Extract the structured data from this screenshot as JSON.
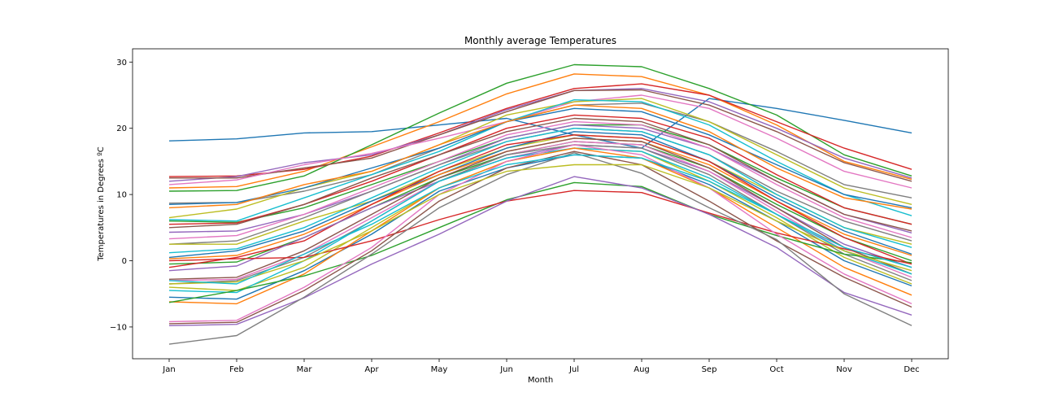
{
  "chart_data": {
    "type": "line",
    "title": "Monthly average Temperatures",
    "xlabel": "Month",
    "ylabel": "Temperatures in Degrees ºC",
    "categories": [
      "Jan",
      "Feb",
      "Mar",
      "Apr",
      "May",
      "Jun",
      "Jul",
      "Aug",
      "Sep",
      "Oct",
      "Nov",
      "Dec"
    ],
    "ylim": [
      -14.8,
      32.0
    ],
    "yticks": [
      -10,
      0,
      10,
      20,
      30
    ],
    "grid": false,
    "legend": "none",
    "palette": [
      "#1f77b4",
      "#ff7f0e",
      "#2ca02c",
      "#d62728",
      "#9467bd",
      "#8c564b",
      "#e377c2",
      "#7f7f7f",
      "#bcbd22",
      "#17becf"
    ],
    "series": [
      {
        "values": [
          18.1,
          18.4,
          19.3,
          19.5,
          20.5,
          21.5,
          19.0,
          17.0,
          24.5,
          23.0,
          21.2,
          19.3
        ]
      },
      {
        "values": [
          11.0,
          11.2,
          13.5,
          17.2,
          21.0,
          25.2,
          28.2,
          27.8,
          25.0,
          20.5,
          15.0,
          12.3
        ]
      },
      {
        "values": [
          10.5,
          10.6,
          12.8,
          17.5,
          22.3,
          26.8,
          29.6,
          29.3,
          26.0,
          22.0,
          16.0,
          12.8
        ]
      },
      {
        "values": [
          12.7,
          12.8,
          13.8,
          15.8,
          19.3,
          23.0,
          26.0,
          26.7,
          25.0,
          21.0,
          17.0,
          13.8
        ]
      },
      {
        "values": [
          12.0,
          12.7,
          14.8,
          16.0,
          19.0,
          22.8,
          25.7,
          26.0,
          24.0,
          20.0,
          15.5,
          12.5
        ]
      },
      {
        "values": [
          12.5,
          12.5,
          14.0,
          15.5,
          19.0,
          22.5,
          25.7,
          25.8,
          23.5,
          19.5,
          14.8,
          12.0
        ]
      },
      {
        "values": [
          11.5,
          12.2,
          14.5,
          16.2,
          18.5,
          21.0,
          24.0,
          25.0,
          23.0,
          18.5,
          13.5,
          11.0
        ]
      },
      {
        "values": [
          8.7,
          8.8,
          10.5,
          13.0,
          17.0,
          21.0,
          23.5,
          23.8,
          21.0,
          16.5,
          11.5,
          9.5
        ]
      },
      {
        "values": [
          6.5,
          7.8,
          11.0,
          13.5,
          17.5,
          22.0,
          24.0,
          24.5,
          21.0,
          16.0,
          11.0,
          8.5
        ]
      },
      {
        "values": [
          6.2,
          6.0,
          9.5,
          13.0,
          16.5,
          21.0,
          24.3,
          24.0,
          20.5,
          15.0,
          10.0,
          6.8
        ]
      },
      {
        "values": [
          8.5,
          8.8,
          11.0,
          14.0,
          17.0,
          21.0,
          23.0,
          22.5,
          19.0,
          14.5,
          10.0,
          8.0
        ]
      },
      {
        "values": [
          8.0,
          8.5,
          11.5,
          13.5,
          17.5,
          21.0,
          23.5,
          23.0,
          19.5,
          14.0,
          9.5,
          7.8
        ]
      },
      {
        "values": [
          6.0,
          5.8,
          8.0,
          11.5,
          15.0,
          18.5,
          20.5,
          20.5,
          17.5,
          12.5,
          8.0,
          5.5
        ]
      },
      {
        "values": [
          5.5,
          5.7,
          8.5,
          12.0,
          16.0,
          20.0,
          22.0,
          21.5,
          18.5,
          13.0,
          8.0,
          5.5
        ]
      },
      {
        "values": [
          4.3,
          4.5,
          7.0,
          10.5,
          14.5,
          18.5,
          20.5,
          20.0,
          17.0,
          12.0,
          7.0,
          4.2
        ]
      },
      {
        "values": [
          5.0,
          5.5,
          8.5,
          12.5,
          16.0,
          19.5,
          21.5,
          21.0,
          17.5,
          12.0,
          7.0,
          4.5
        ]
      },
      {
        "values": [
          3.3,
          3.8,
          7.0,
          11.0,
          15.0,
          19.0,
          21.0,
          20.5,
          17.0,
          11.5,
          6.5,
          3.5
        ]
      },
      {
        "values": [
          2.5,
          3.0,
          6.5,
          10.5,
          14.5,
          18.0,
          20.0,
          19.5,
          16.0,
          10.5,
          6.0,
          3.0
        ]
      },
      {
        "values": [
          2.5,
          2.5,
          6.0,
          9.0,
          13.5,
          17.0,
          19.0,
          18.5,
          15.0,
          10.0,
          5.0,
          2.5
        ]
      },
      {
        "values": [
          1.2,
          1.8,
          5.0,
          9.5,
          14.0,
          18.0,
          20.0,
          19.5,
          16.0,
          10.0,
          5.0,
          2.0
        ]
      },
      {
        "values": [
          0.5,
          1.5,
          4.5,
          9.0,
          13.0,
          17.0,
          19.5,
          19.0,
          15.0,
          9.5,
          4.5,
          1.0
        ]
      },
      {
        "values": [
          0.3,
          0.8,
          4.0,
          8.5,
          13.0,
          16.5,
          18.5,
          18.0,
          14.5,
          9.0,
          4.0,
          0.8
        ]
      },
      {
        "values": [
          -0.5,
          -0.2,
          3.5,
          8.0,
          12.5,
          16.0,
          18.0,
          17.5,
          14.0,
          8.5,
          3.5,
          0.0
        ]
      },
      {
        "values": [
          -1.0,
          0.5,
          3.0,
          8.5,
          13.5,
          17.5,
          19.0,
          18.5,
          15.0,
          9.0,
          3.5,
          -0.5
        ]
      },
      {
        "values": [
          -1.5,
          -0.8,
          3.5,
          8.0,
          12.0,
          15.5,
          17.5,
          17.0,
          13.5,
          8.0,
          2.5,
          -1.0
        ]
      },
      {
        "values": [
          -2.8,
          -2.5,
          1.5,
          7.0,
          12.5,
          16.5,
          18.5,
          18.0,
          14.0,
          8.0,
          2.0,
          -2.0
        ]
      },
      {
        "values": [
          -3.0,
          -2.8,
          1.0,
          6.5,
          12.0,
          16.0,
          18.0,
          17.5,
          13.5,
          7.5,
          1.5,
          -2.5
        ]
      },
      {
        "values": [
          -3.5,
          -3.0,
          0.5,
          6.0,
          12.0,
          16.0,
          17.5,
          17.0,
          13.0,
          7.0,
          1.0,
          -3.0
        ]
      },
      {
        "values": [
          -4.0,
          -4.5,
          -1.0,
          5.0,
          11.0,
          15.0,
          17.0,
          16.5,
          12.0,
          6.5,
          0.5,
          -3.5
        ]
      },
      {
        "values": [
          -4.5,
          -4.8,
          0.0,
          6.0,
          12.0,
          15.5,
          17.0,
          16.5,
          12.5,
          7.0,
          1.5,
          -2.0
        ]
      },
      {
        "values": [
          -5.5,
          -5.8,
          -1.5,
          4.0,
          10.5,
          14.0,
          16.0,
          15.5,
          11.5,
          6.0,
          0.0,
          -3.8
        ]
      },
      {
        "values": [
          -6.2,
          -6.5,
          -2.0,
          4.5,
          11.0,
          15.0,
          17.0,
          15.5,
          11.0,
          5.0,
          -1.0,
          -5.2
        ]
      },
      {
        "values": [
          -6.3,
          -4.5,
          -2.3,
          0.8,
          5.0,
          9.2,
          11.8,
          11.2,
          7.0,
          3.8,
          1.0,
          -0.3
        ]
      },
      {
        "values": [
          0.0,
          0.3,
          0.5,
          3.0,
          6.2,
          9.0,
          10.6,
          10.3,
          7.2,
          4.2,
          1.8,
          -0.5
        ]
      },
      {
        "values": [
          -9.8,
          -9.6,
          -5.6,
          -0.5,
          4.0,
          9.0,
          12.7,
          11.0,
          7.0,
          2.0,
          -4.8,
          -8.2
        ]
      },
      {
        "values": [
          -9.5,
          -9.3,
          -4.5,
          1.5,
          9.0,
          14.0,
          16.5,
          14.5,
          9.0,
          3.0,
          -2.5,
          -7.0
        ]
      },
      {
        "values": [
          -9.2,
          -9.0,
          -4.0,
          2.0,
          10.0,
          15.0,
          17.5,
          16.0,
          11.0,
          4.0,
          -2.0,
          -6.5
        ]
      },
      {
        "values": [
          -12.6,
          -11.3,
          -5.5,
          1.0,
          8.0,
          13.0,
          16.3,
          13.2,
          8.0,
          3.2,
          -5.0,
          -9.8
        ]
      },
      {
        "values": [
          -3.5,
          -3.2,
          0.0,
          4.5,
          10.0,
          13.5,
          14.5,
          14.5,
          11.0,
          6.0,
          1.5,
          -1.5
        ]
      },
      {
        "values": [
          -3.0,
          -3.5,
          1.0,
          5.5,
          11.0,
          14.5,
          16.0,
          15.5,
          12.0,
          7.0,
          2.0,
          -1.0
        ]
      }
    ]
  }
}
